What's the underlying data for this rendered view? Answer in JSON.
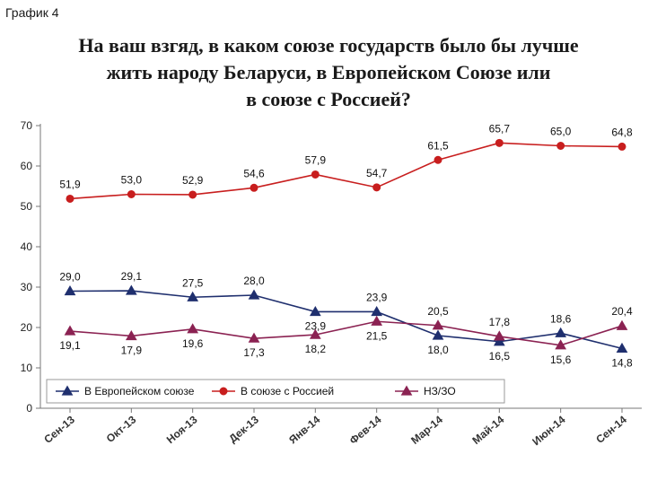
{
  "caption": "График 4",
  "title_lines": [
    "На ваш взгяд, в каком союзе государств было бы лучше",
    "жить народу Беларуси, в Европейском Союзе или",
    "в союзе с Россией?"
  ],
  "chart_data": {
    "type": "line",
    "title": "На ваш взгяд, в каком союзе государств было бы лучше жить народу Беларуси, в Европейском Союзе или в союзе с Россией?",
    "categories": [
      "Сен-13",
      "Окт-13",
      "Ноя-13",
      "Дек-13",
      "Янв-14",
      "Фев-14",
      "Мар-14",
      "Май-14",
      "Июн-14",
      "Сен-14"
    ],
    "ylim": [
      0,
      70
    ],
    "yticks": [
      0,
      10,
      20,
      30,
      40,
      50,
      60,
      70
    ],
    "grid": false,
    "legend_position": "bottom",
    "series": [
      {
        "name": "В Европейском союзе",
        "color": "#1f2f6e",
        "marker": "triangle",
        "values": [
          29.0,
          29.1,
          27.5,
          28.0,
          23.9,
          23.9,
          18.0,
          16.5,
          18.6,
          14.8
        ],
        "labels": [
          "29,0",
          "29,1",
          "27,5",
          "28,0",
          "23,9",
          "23,9",
          "18,0",
          "16,5",
          "18,6",
          "14,8"
        ]
      },
      {
        "name": "В союзе с Россией",
        "color": "#c81e1e",
        "marker": "circle",
        "values": [
          51.9,
          53.0,
          52.9,
          54.6,
          57.9,
          54.7,
          61.5,
          65.7,
          65.0,
          64.8
        ],
        "labels": [
          "51,9",
          "53,0",
          "52,9",
          "54,6",
          "57,9",
          "54,7",
          "61,5",
          "65,7",
          "65,0",
          "64,8"
        ]
      },
      {
        "name": "НЗ/ЗО",
        "color": "#8b2252",
        "marker": "triangle",
        "values": [
          19.1,
          17.9,
          19.6,
          17.3,
          18.2,
          21.5,
          20.5,
          17.8,
          15.6,
          20.4
        ],
        "labels": [
          "19,1",
          "17,9",
          "19,6",
          "17,3",
          "18,2",
          "21,5",
          "20,5",
          "17,8",
          "15,6",
          "20,4"
        ]
      }
    ]
  }
}
